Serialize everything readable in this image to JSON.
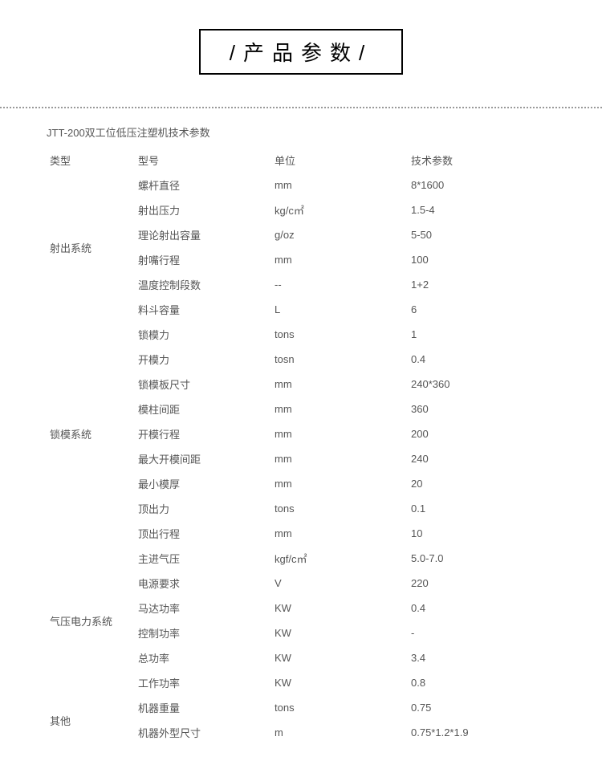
{
  "header": {
    "title": "/产品参数/"
  },
  "tableTitle": "JTT-200双工位低压注塑机技术参数",
  "columns": {
    "c1": "类型",
    "c2": "型号",
    "c3": "单位",
    "c4": "技术参数"
  },
  "groups": [
    {
      "category": "射出系统",
      "rows": [
        {
          "name": "螺杆直径",
          "unit": "mm",
          "value": "8*1600"
        },
        {
          "name": "射出压力",
          "unit": "kg/c㎡",
          "value": "1.5-4"
        },
        {
          "name": "理论射出容量",
          "unit": "g/oz",
          "value": "5-50"
        },
        {
          "name": "射嘴行程",
          "unit": "mm",
          "value": "100"
        },
        {
          "name": "温度控制段数",
          "unit": "--",
          "value": "1+2"
        },
        {
          "name": "料斗容量",
          "unit": "L",
          "value": "6"
        }
      ]
    },
    {
      "category": "锁模系统",
      "rows": [
        {
          "name": "锁模力",
          "unit": "tons",
          "value": "1"
        },
        {
          "name": "开模力",
          "unit": "tosn",
          "value": "0.4"
        },
        {
          "name": "锁模板尺寸",
          "unit": "mm",
          "value": "240*360"
        },
        {
          "name": "模柱间距",
          "unit": "mm",
          "value": "360"
        },
        {
          "name": "开模行程",
          "unit": "mm",
          "value": "200"
        },
        {
          "name": "最大开模间距",
          "unit": "mm",
          "value": "240"
        },
        {
          "name": "最小模厚",
          "unit": "mm",
          "value": "20"
        },
        {
          "name": "顶出力",
          "unit": "tons",
          "value": "0.1"
        },
        {
          "name": "顶出行程",
          "unit": "mm",
          "value": "10"
        }
      ]
    },
    {
      "category": "气压电力系统",
      "rows": [
        {
          "name": "主进气压",
          "unit": "kgf/c㎡",
          "value": "5.0-7.0"
        },
        {
          "name": "电源要求",
          "unit": "V",
          "value": "220"
        },
        {
          "name": "马达功率",
          "unit": "KW",
          "value": "0.4"
        },
        {
          "name": "控制功率",
          "unit": "KW",
          "value": "-"
        },
        {
          "name": "总功率",
          "unit": "KW",
          "value": "3.4"
        },
        {
          "name": "工作功率",
          "unit": "KW",
          "value": "0.8"
        }
      ]
    },
    {
      "category": "其他",
      "rows": [
        {
          "name": "机器重量",
          "unit": "tons",
          "value": "0.75"
        },
        {
          "name": "机器外型尺寸",
          "unit": "m",
          "value": "0.75*1.2*1.9"
        }
      ]
    }
  ]
}
